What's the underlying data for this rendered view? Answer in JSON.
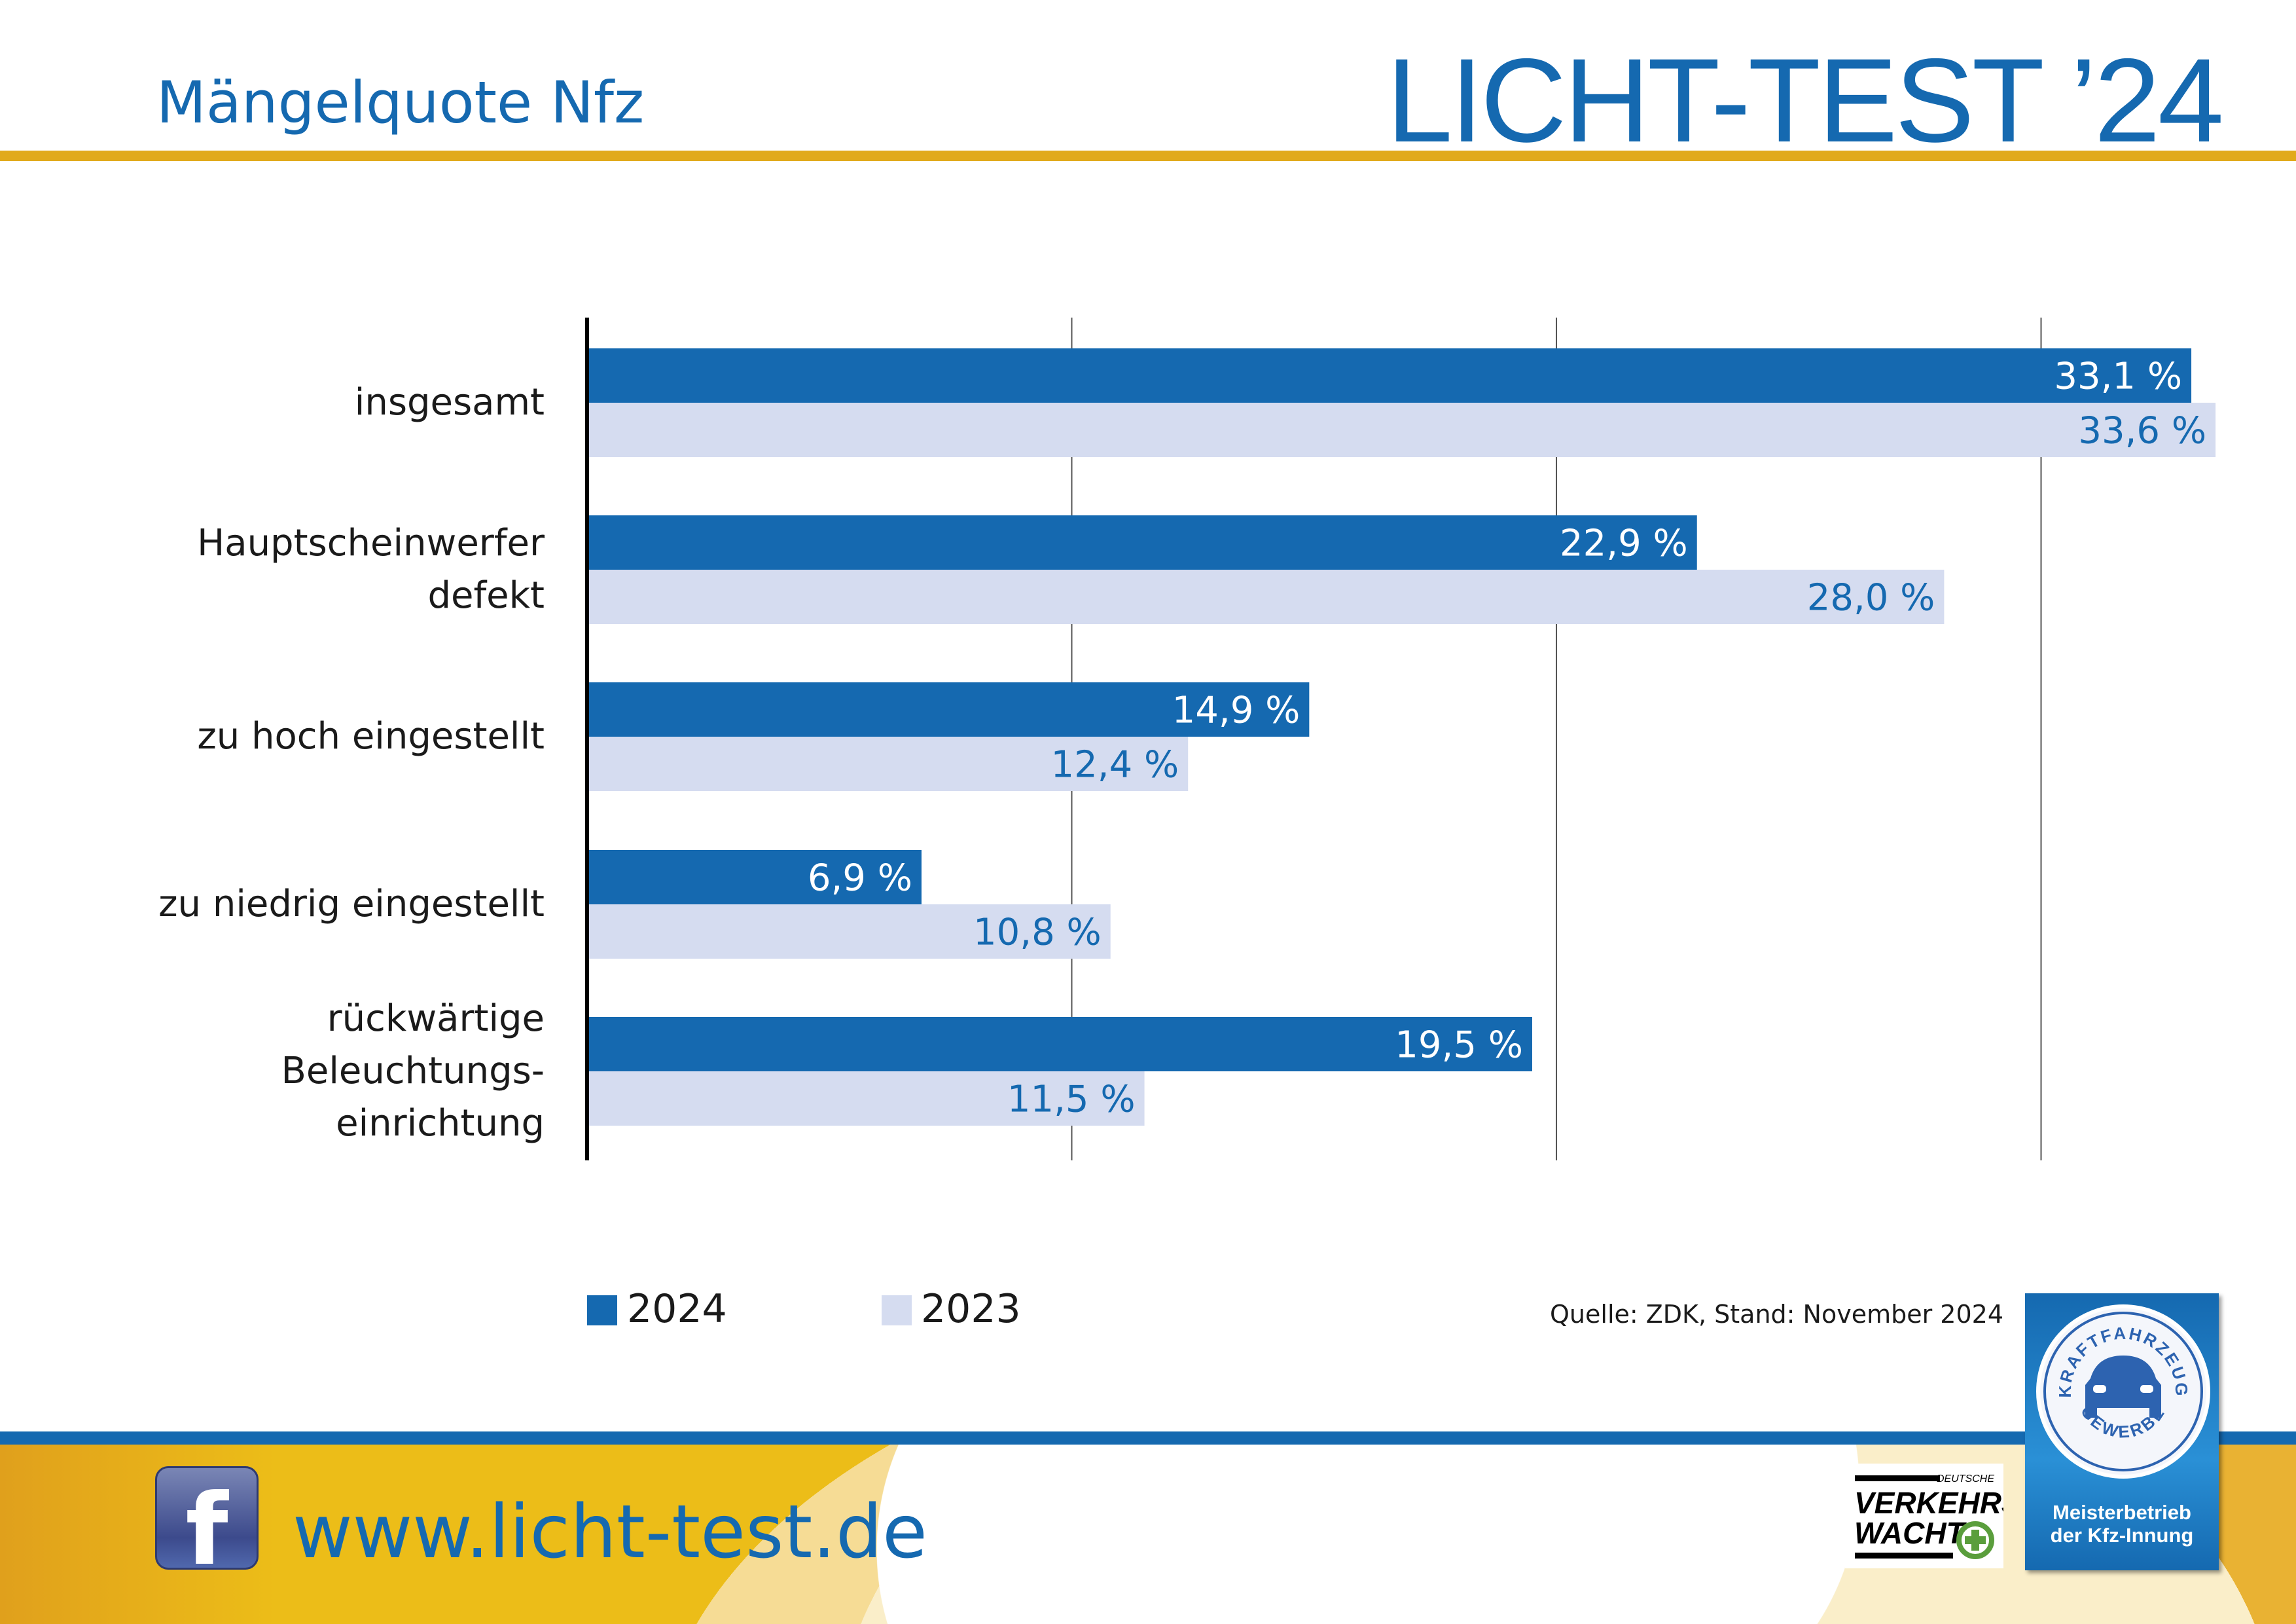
{
  "header": {
    "title": "Mängelquote Nfz",
    "brand": "LICHT-TEST ’24"
  },
  "colors": {
    "series_2024": "#1569b0",
    "series_2023": "#d5dcf0",
    "accent_gold": "#e1aa1c",
    "brand_blue": "#1569b0"
  },
  "chart_data": {
    "type": "bar",
    "orientation": "horizontal",
    "categories": [
      "insgesamt",
      "Hauptscheinwerfer defekt",
      "zu hoch eingestellt",
      "zu niedrig eingestellt",
      "rückwärtige Beleuchtungs- einrichtung"
    ],
    "category_lines": [
      [
        "insgesamt"
      ],
      [
        "Hauptscheinwerfer",
        "defekt"
      ],
      [
        "zu hoch eingestellt"
      ],
      [
        "zu niedrig eingestellt"
      ],
      [
        "rückwärtige",
        "Beleuchtungs-",
        "einrichtung"
      ]
    ],
    "series": [
      {
        "name": "2024",
        "values": [
          33.1,
          22.9,
          14.9,
          6.9,
          19.5
        ],
        "labels": [
          "33,1 %",
          "22,9 %",
          "14,9 %",
          "6,9 %",
          "19,5 %"
        ]
      },
      {
        "name": "2023",
        "values": [
          33.6,
          28.0,
          12.4,
          10.8,
          11.5
        ],
        "labels": [
          "33,6 %",
          "28,0 %",
          "12,4 %",
          "10,8 %",
          "11,5 %"
        ]
      }
    ],
    "xlim": [
      0,
      34
    ],
    "gridlines": [
      10,
      20,
      30
    ],
    "grid": true,
    "legend": "bottom-left",
    "unit": "%"
  },
  "legend": {
    "items": [
      "2024",
      "2023"
    ]
  },
  "source": "Quelle: ZDK, Stand: November 2024",
  "footer": {
    "url": "www.licht-test.de",
    "facebook_icon": "facebook-icon",
    "vw_logo": {
      "top": "DEUTSCHE",
      "line1": "VERKEHRS",
      "line2": "WACHT"
    },
    "meister_badge": {
      "ring_top": "KRAFTFAHRZEUG",
      "ring_bottom": "GEWERBE",
      "line1": "Meisterbetrieb",
      "line2": "der Kfz-Innung"
    }
  }
}
